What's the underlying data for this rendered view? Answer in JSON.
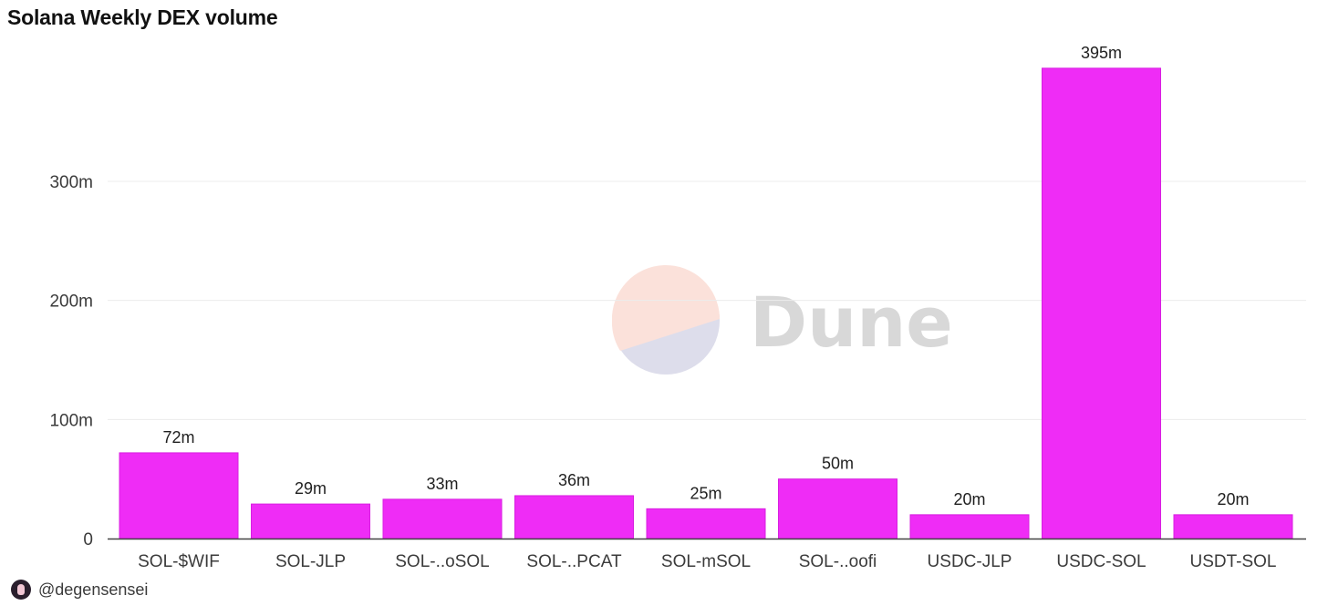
{
  "header": {
    "title": "Solana Weekly DEX volume"
  },
  "footer": {
    "handle": "@degensensei",
    "avatar_icon": "avatar-icon"
  },
  "watermark": {
    "text": "Dune",
    "logo_icon": "dune-logo-icon"
  },
  "colors": {
    "bar": "#ef2cf6",
    "bar_stroke": "#d81fe0",
    "grid": "#ececec",
    "axis": "#444444"
  },
  "chart_data": {
    "type": "bar",
    "categories": [
      "SOL-$WIF",
      "SOL-JLP",
      "SOL-..oSOL",
      "SOL-..PCAT",
      "SOL-mSOL",
      "SOL-..oofi",
      "USDC-JLP",
      "USDC-SOL",
      "USDT-SOL"
    ],
    "values": [
      72,
      29,
      33,
      36,
      25,
      50,
      20,
      395,
      20
    ],
    "value_labels": [
      "72m",
      "29m",
      "33m",
      "36m",
      "25m",
      "50m",
      "20m",
      "395m",
      "20m"
    ],
    "yticks": [
      0,
      100,
      200,
      300
    ],
    "ytick_labels": [
      "0",
      "100m",
      "200m",
      "300m"
    ],
    "ylim": [
      0,
      400
    ],
    "grid": true,
    "legend": "none"
  }
}
